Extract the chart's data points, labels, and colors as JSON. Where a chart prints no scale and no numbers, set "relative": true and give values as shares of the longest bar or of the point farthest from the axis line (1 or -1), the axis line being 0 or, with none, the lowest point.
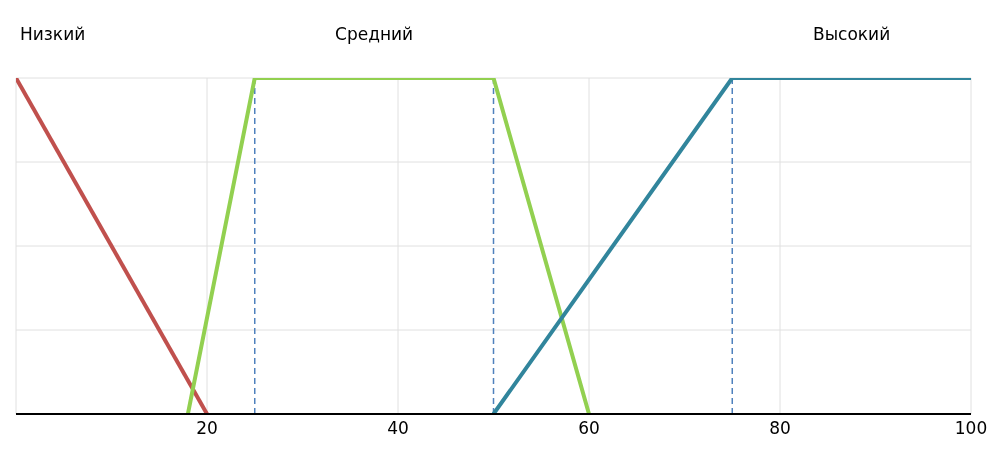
{
  "chart_data": {
    "type": "line",
    "relative": true,
    "xlim": [
      0,
      100
    ],
    "xticks": [
      20,
      40,
      60,
      80,
      100
    ],
    "grid": true,
    "marker": "none",
    "line_style": "solid",
    "legend": false,
    "series": [
      {
        "name": "Низкий",
        "color": "#c0504d",
        "x": [
          0,
          20
        ],
        "values": [
          1,
          0
        ]
      },
      {
        "name": "Средний",
        "color": "#92d050",
        "x": [
          18,
          25,
          50,
          60
        ],
        "values": [
          0,
          1,
          1,
          0
        ]
      },
      {
        "name": "Высокий",
        "color": "#31859c",
        "x": [
          50,
          75,
          100
        ],
        "values": [
          0,
          1,
          1
        ]
      }
    ],
    "ref_lines": [
      {
        "axis": "x",
        "value": 25,
        "color": "#4f81bd",
        "line_style": "dashed"
      },
      {
        "axis": "x",
        "value": 50,
        "color": "#4f81bd",
        "line_style": "dashed"
      },
      {
        "axis": "x",
        "value": 75,
        "color": "#4f81bd",
        "line_style": "dashed"
      }
    ]
  }
}
